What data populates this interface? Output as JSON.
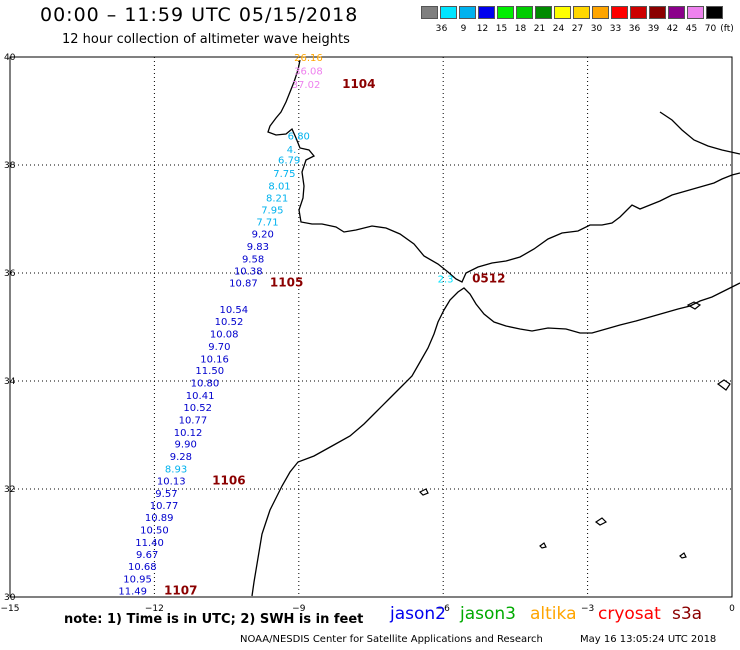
{
  "header": {
    "title": "00:00 – 11:59 UTC 05/15/2018",
    "subtitle": "12 hour collection of altimeter wave heights"
  },
  "color_scale": {
    "unit": "(ft)",
    "steps": [
      {
        "label": "3",
        "color": "#7f7f7f"
      },
      {
        "label": "6",
        "color": "#00e5ff"
      },
      {
        "label": "9",
        "color": "#00b2ee"
      },
      {
        "label": "12",
        "color": "#0000ee"
      },
      {
        "label": "15",
        "color": "#00ee00"
      },
      {
        "label": "18",
        "color": "#00cd00"
      },
      {
        "label": "21",
        "color": "#008b00"
      },
      {
        "label": "24",
        "color": "#ffff00"
      },
      {
        "label": "27",
        "color": "#ffd700"
      },
      {
        "label": "30",
        "color": "#ffa500"
      },
      {
        "label": "33",
        "color": "#ff0000"
      },
      {
        "label": "36",
        "color": "#cd0000"
      },
      {
        "label": "39",
        "color": "#8b0000"
      },
      {
        "label": "42",
        "color": "#8b008b"
      },
      {
        "label": "45",
        "color": "#ee82ee"
      },
      {
        "label": "70",
        "color": "#000000"
      }
    ]
  },
  "axes": {
    "x_ticks": [
      {
        "lon": -15,
        "label": "−15"
      },
      {
        "lon": -12,
        "label": "−12"
      },
      {
        "lon": -9,
        "label": "−9"
      },
      {
        "lon": -6,
        "label": "−6"
      },
      {
        "lon": -3,
        "label": "−3"
      },
      {
        "lon": 0,
        "label": "0"
      }
    ],
    "y_ticks": [
      {
        "lat": 30,
        "label": "30"
      },
      {
        "lat": 32,
        "label": "32"
      },
      {
        "lat": 34,
        "label": "34"
      },
      {
        "lat": 36,
        "label": "36"
      },
      {
        "lat": 38,
        "label": "38"
      },
      {
        "lat": 40,
        "label": "40"
      }
    ]
  },
  "observations": [
    {
      "lon": -8.8,
      "lat": 40.0,
      "swh": "26.16",
      "color": "#ffa500"
    },
    {
      "lon": -8.8,
      "lat": 39.75,
      "swh": "36.08",
      "color": "#ee82ee"
    },
    {
      "lon": -8.85,
      "lat": 39.5,
      "swh": "37.02",
      "color": "#ee82ee"
    },
    {
      "lon": -9.0,
      "lat": 38.55,
      "swh": "6.80",
      "color": "#00b2ee"
    },
    {
      "lon": -9.15,
      "lat": 38.3,
      "swh": "4.",
      "color": "#00b2ee"
    },
    {
      "lon": -9.2,
      "lat": 38.1,
      "swh": "6.79",
      "color": "#00b2ee"
    },
    {
      "lon": -9.3,
      "lat": 37.85,
      "swh": "7.75",
      "color": "#00b2ee"
    },
    {
      "lon": -9.4,
      "lat": 37.62,
      "swh": "8.01",
      "color": "#00b2ee"
    },
    {
      "lon": -9.45,
      "lat": 37.4,
      "swh": "8.21",
      "color": "#00b2ee"
    },
    {
      "lon": -9.55,
      "lat": 37.18,
      "swh": "7.95",
      "color": "#00b2ee"
    },
    {
      "lon": -9.65,
      "lat": 36.95,
      "swh": "7.71",
      "color": "#00b2ee"
    },
    {
      "lon": -9.75,
      "lat": 36.73,
      "swh": "9.20",
      "color": "#0000cd"
    },
    {
      "lon": -9.85,
      "lat": 36.5,
      "swh": "9.83",
      "color": "#0000cd"
    },
    {
      "lon": -9.95,
      "lat": 36.27,
      "swh": "9.58",
      "color": "#0000cd"
    },
    {
      "lon": -10.05,
      "lat": 36.05,
      "swh": "10.38",
      "color": "#0000cd"
    },
    {
      "lon": -10.15,
      "lat": 35.82,
      "swh": "10.87",
      "color": "#0000cd"
    },
    {
      "lon": -10.35,
      "lat": 35.33,
      "swh": "10.54",
      "color": "#0000cd"
    },
    {
      "lon": -10.45,
      "lat": 35.11,
      "swh": "10.52",
      "color": "#0000cd"
    },
    {
      "lon": -10.55,
      "lat": 34.88,
      "swh": "10.08",
      "color": "#0000cd"
    },
    {
      "lon": -10.65,
      "lat": 34.65,
      "swh": "9.70",
      "color": "#0000cd"
    },
    {
      "lon": -10.75,
      "lat": 34.42,
      "swh": "10.16",
      "color": "#0000cd"
    },
    {
      "lon": -10.85,
      "lat": 34.2,
      "swh": "11.50",
      "color": "#0000cd"
    },
    {
      "lon": -10.95,
      "lat": 33.97,
      "swh": "10.80",
      "color": "#0000cd"
    },
    {
      "lon": -11.05,
      "lat": 33.74,
      "swh": "10.41",
      "color": "#0000cd"
    },
    {
      "lon": -11.1,
      "lat": 33.52,
      "swh": "10.52",
      "color": "#0000cd"
    },
    {
      "lon": -11.2,
      "lat": 33.29,
      "swh": "10.77",
      "color": "#0000cd"
    },
    {
      "lon": -11.3,
      "lat": 33.06,
      "swh": "10.12",
      "color": "#0000cd"
    },
    {
      "lon": -11.35,
      "lat": 32.84,
      "swh": "9.90",
      "color": "#0000cd"
    },
    {
      "lon": -11.45,
      "lat": 32.61,
      "swh": "9.28",
      "color": "#0000cd"
    },
    {
      "lon": -11.55,
      "lat": 32.38,
      "swh": "8.93",
      "color": "#00b2ee"
    },
    {
      "lon": -11.65,
      "lat": 32.16,
      "swh": "10.13",
      "color": "#0000cd"
    },
    {
      "lon": -11.75,
      "lat": 31.93,
      "swh": "9.57",
      "color": "#0000cd"
    },
    {
      "lon": -11.8,
      "lat": 31.7,
      "swh": "10.77",
      "color": "#0000cd"
    },
    {
      "lon": -11.9,
      "lat": 31.48,
      "swh": "10.89",
      "color": "#0000cd"
    },
    {
      "lon": -12.0,
      "lat": 31.25,
      "swh": "10.50",
      "color": "#0000cd"
    },
    {
      "lon": -12.1,
      "lat": 31.02,
      "swh": "11.40",
      "color": "#0000cd"
    },
    {
      "lon": -12.15,
      "lat": 30.8,
      "swh": "9.67",
      "color": "#0000cd"
    },
    {
      "lon": -12.25,
      "lat": 30.57,
      "swh": "10.68",
      "color": "#0000cd"
    },
    {
      "lon": -12.35,
      "lat": 30.34,
      "swh": "10.95",
      "color": "#0000cd"
    },
    {
      "lon": -12.45,
      "lat": 30.12,
      "swh": "11.49",
      "color": "#0000cd"
    },
    {
      "lon": -5.95,
      "lat": 35.9,
      "swh": "2.3",
      "color": "#00e5ff"
    }
  ],
  "time_labels": [
    {
      "lon": -8.1,
      "lat": 39.5,
      "text": "1104"
    },
    {
      "lon": -9.6,
      "lat": 35.82,
      "text": "1105"
    },
    {
      "lon": -10.8,
      "lat": 32.16,
      "text": "1106"
    },
    {
      "lon": -11.8,
      "lat": 30.12,
      "text": "1107"
    },
    {
      "lon": -5.4,
      "lat": 35.9,
      "text": "0512",
      "color": "#0000cd"
    }
  ],
  "footer": {
    "note": "note:  1) Time is in UTC;  2) SWH is in feet",
    "legend": [
      {
        "name": "jason2",
        "color": "#0000ee"
      },
      {
        "name": "jason3",
        "color": "#00aa00"
      },
      {
        "name": "altika",
        "color": "#ffa500"
      },
      {
        "name": "cryosat",
        "color": "#ff0000"
      },
      {
        "name": "s3a",
        "color": "#8b0000"
      }
    ],
    "credit": "NOAA/NESDIS Center for Satellite Applications and Research",
    "stamp": "May 16 13:05:24 UTC 2018"
  }
}
